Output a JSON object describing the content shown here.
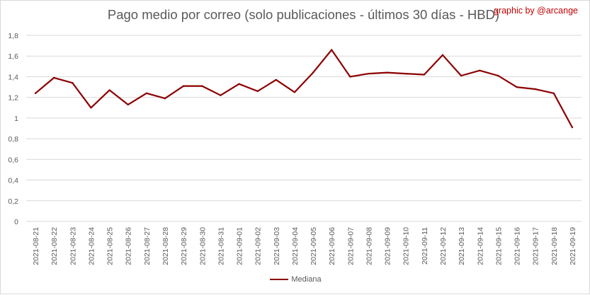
{
  "credit": "graphic by @arcange",
  "colors": {
    "series": "#8b0000",
    "credit": "#c00000",
    "gridline": "#d9d9d9",
    "text": "#595959"
  },
  "chart_data": {
    "type": "line",
    "title": "Pago medio por correo (solo publicaciones - últimos 30 días - HBD)",
    "xlabel": "",
    "ylabel": "",
    "ylim": [
      0,
      1.8
    ],
    "ytick_step": 0.2,
    "ytick_labels": [
      "0",
      "0,2",
      "0,4",
      "0,6",
      "0,8",
      "1",
      "1,2",
      "1,4",
      "1,6",
      "1,8"
    ],
    "grid": true,
    "legend_position": "bottom",
    "categories": [
      "2021-08-21",
      "2021-08-22",
      "2021-08-23",
      "2021-08-24",
      "2021-08-25",
      "2021-08-26",
      "2021-08-27",
      "2021-08-28",
      "2021-08-29",
      "2021-08-30",
      "2021-08-31",
      "2021-09-01",
      "2021-09-02",
      "2021-09-03",
      "2021-09-04",
      "2021-09-05",
      "2021-09-06",
      "2021-09-07",
      "2021-09-08",
      "2021-09-09",
      "2021-09-10",
      "2021-09-11",
      "2021-09-12",
      "2021-09-13",
      "2021-09-14",
      "2021-09-15",
      "2021-09-16",
      "2021-09-17",
      "2021-09-18",
      "2021-09-19"
    ],
    "series": [
      {
        "name": "Mediana",
        "values": [
          1.24,
          1.39,
          1.34,
          1.1,
          1.27,
          1.13,
          1.24,
          1.19,
          1.31,
          1.31,
          1.22,
          1.33,
          1.26,
          1.37,
          1.25,
          1.44,
          1.66,
          1.4,
          1.43,
          1.44,
          1.43,
          1.42,
          1.61,
          1.41,
          1.46,
          1.41,
          1.3,
          1.28,
          1.24,
          0.91
        ]
      }
    ]
  }
}
